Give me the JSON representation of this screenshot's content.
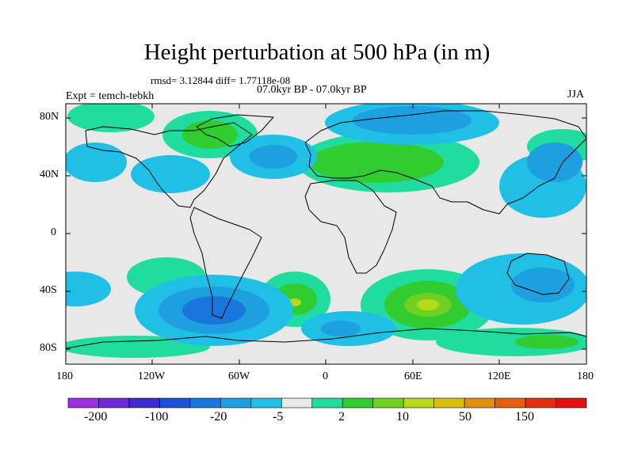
{
  "header": {
    "title": "Height perturbation at 500 hPa (in m)",
    "stats": "rmsd= 3.12844 diff= 1.77118e-08",
    "period": "07.0kyr BP - 07.0kyr BP",
    "experiment": "Expt = temch-tebkh",
    "season": "JJA"
  },
  "axes": {
    "lat_labels": [
      "80N",
      "40N",
      "0",
      "40S",
      "80S"
    ],
    "lon_labels": [
      "180",
      "120W",
      "60W",
      "0",
      "60E",
      "120E",
      "180"
    ]
  },
  "colorbar": {
    "colors": [
      "#9b30e0",
      "#6a28d8",
      "#3c2cd0",
      "#1e50d8",
      "#1a76dc",
      "#1ea0e0",
      "#20c0e6",
      "#e8e8e8",
      "#20dca0",
      "#30cc30",
      "#70d020",
      "#b8d818",
      "#d8c010",
      "#e09010",
      "#e06010",
      "#e03010",
      "#e01010"
    ],
    "labels": [
      "-200",
      "-100",
      "-20",
      "-5",
      "2",
      "10",
      "50",
      "150"
    ]
  },
  "map": {
    "background": "#e8e8e8"
  }
}
